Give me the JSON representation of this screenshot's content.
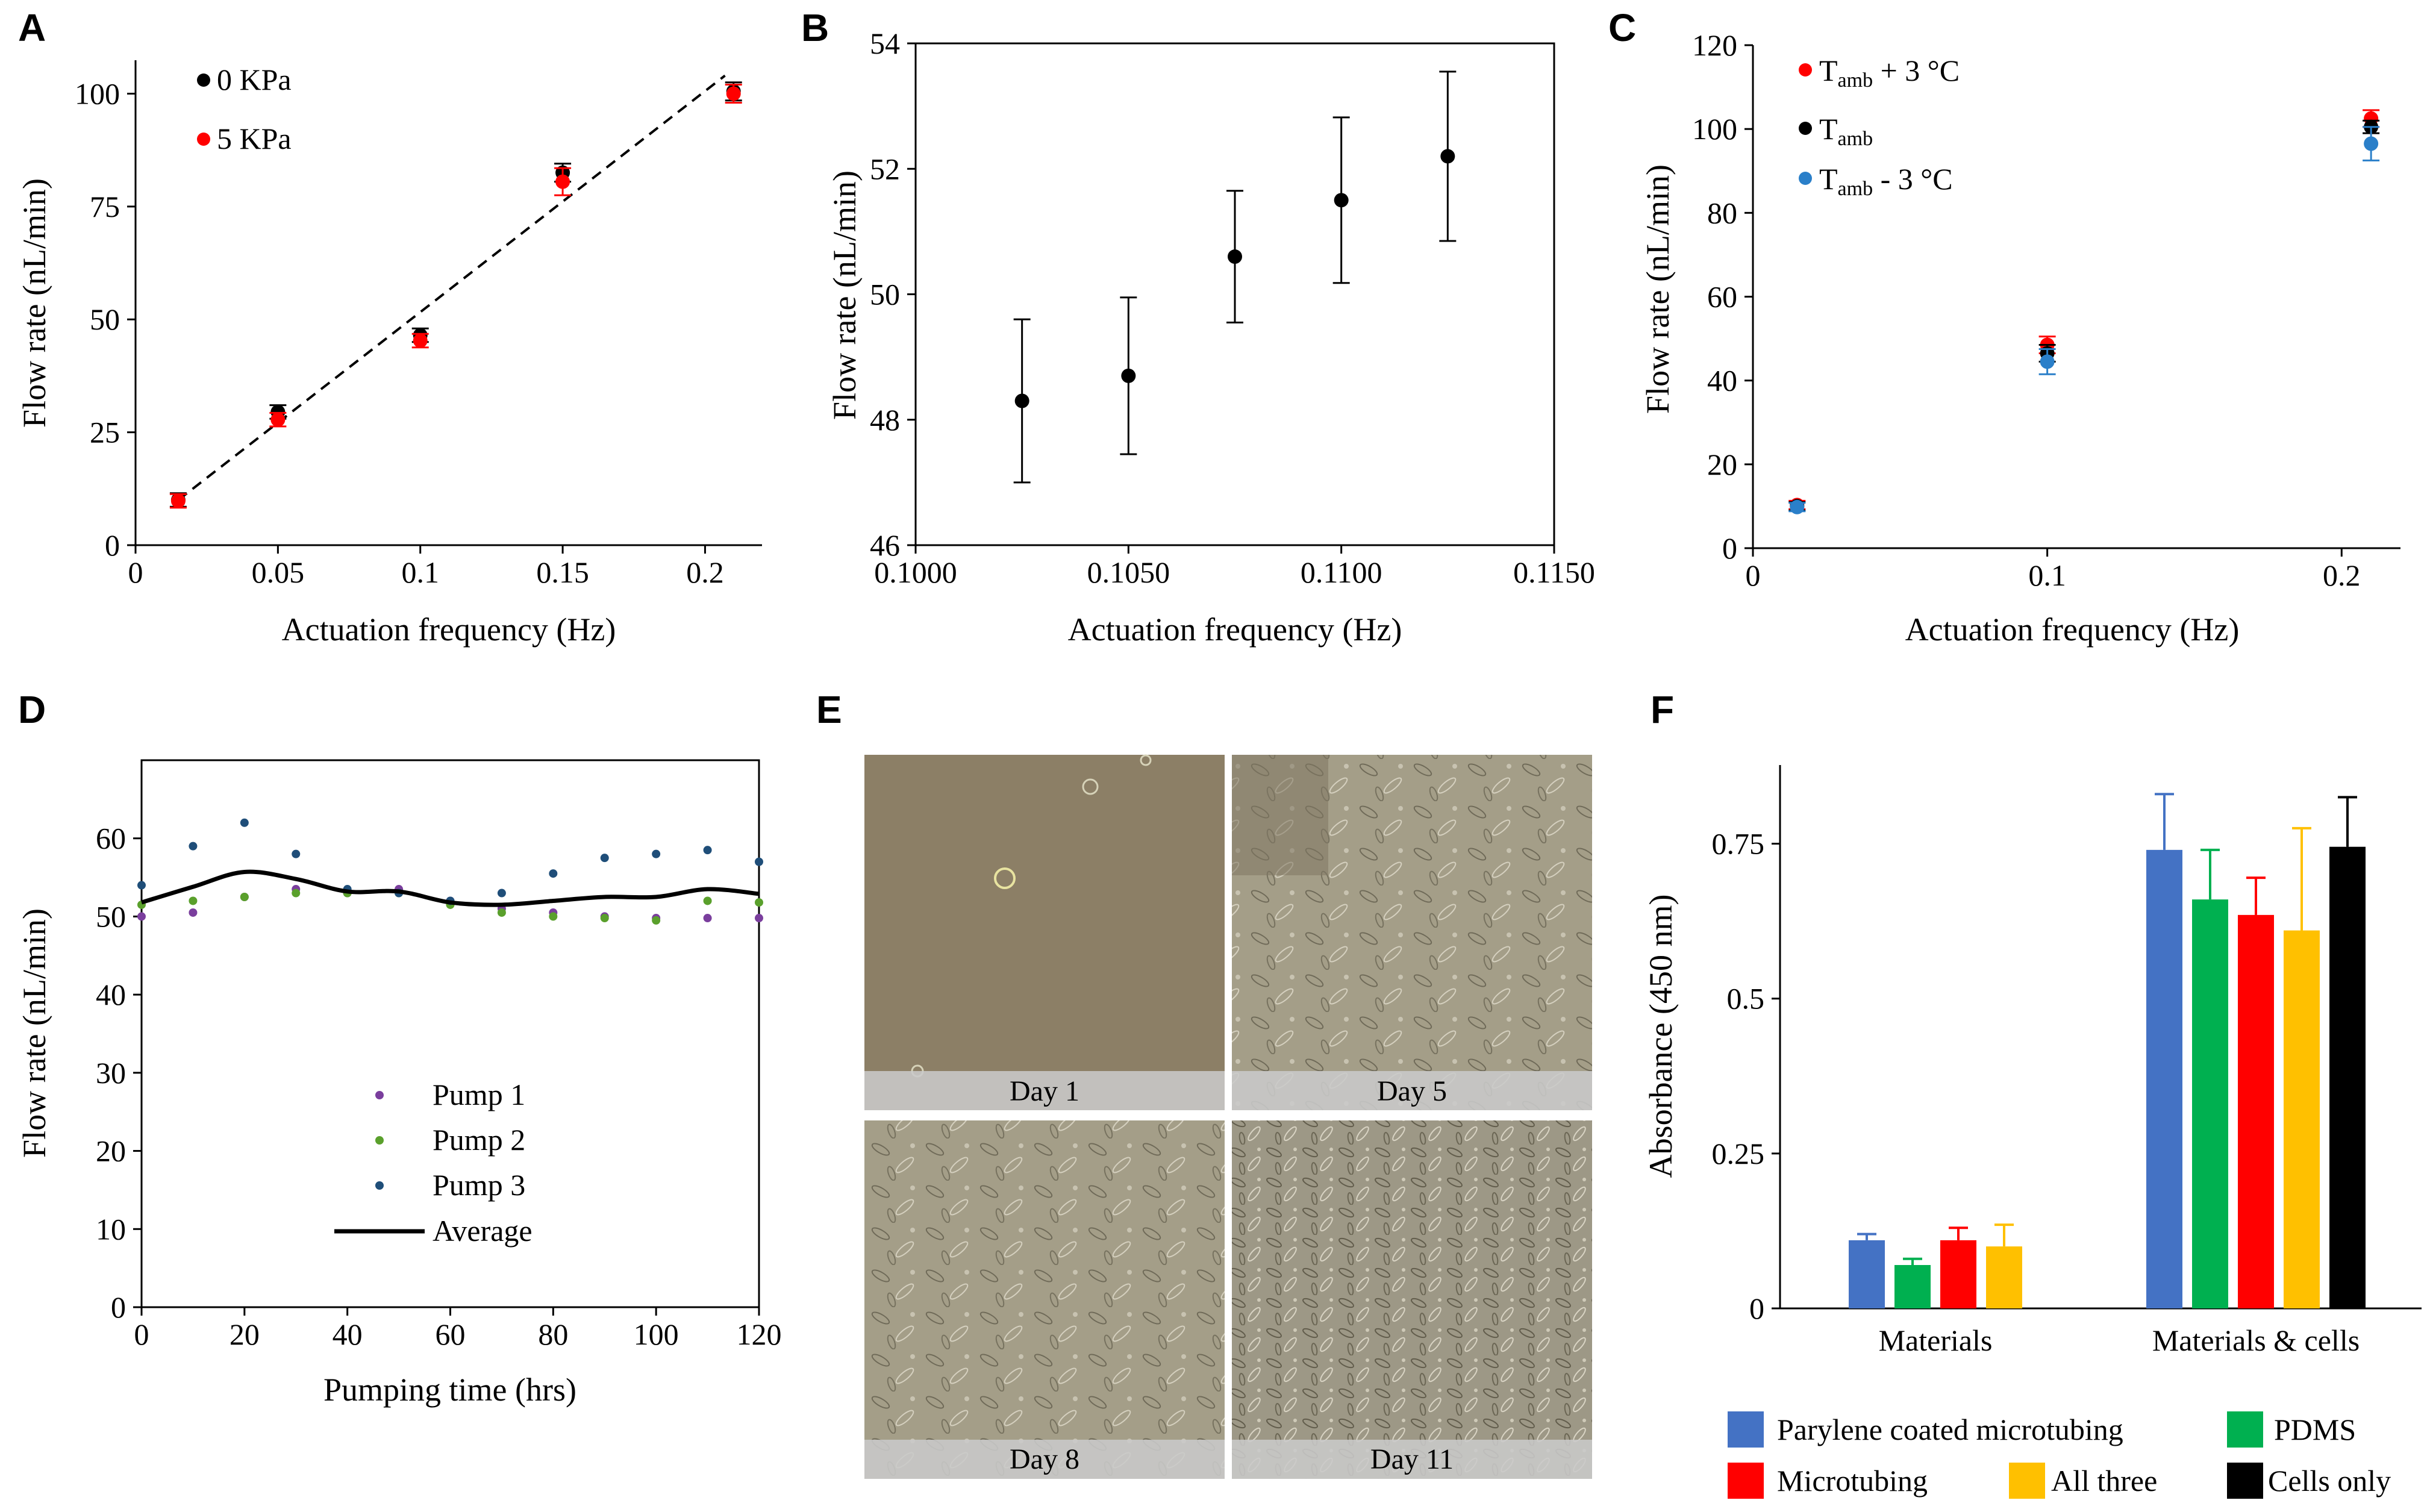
{
  "panels": {
    "A": {
      "label": "A",
      "chart_data": {
        "type": "scatter",
        "xlabel": "Actuation frequency (Hz)",
        "ylabel": "Flow rate (nL/min)",
        "xlim": [
          0,
          0.22
        ],
        "ylim": [
          0,
          105
        ],
        "xticks": [
          0,
          0.05,
          0.1,
          0.15,
          0.2
        ],
        "xtick_labels": [
          "0",
          "0.05",
          "0.1",
          "0.15",
          "0.2"
        ],
        "yticks": [
          0,
          25,
          50,
          75,
          100
        ],
        "ytick_labels": [
          "0",
          "25",
          "50",
          "75",
          "100"
        ],
        "series": [
          {
            "name": "0 KPa",
            "color": "#000000",
            "x": [
              0.015,
              0.05,
              0.1,
              0.15,
              0.21
            ],
            "y": [
              10,
              29.5,
              46.5,
              82.5,
              100.5
            ],
            "err": [
              1.5,
              1.5,
              1.5,
              2,
              2
            ]
          },
          {
            "name": "5 KPa",
            "color": "#ff0000",
            "x": [
              0.015,
              0.05,
              0.1,
              0.15,
              0.21
            ],
            "y": [
              9.8,
              27.8,
              45.3,
              80.5,
              100
            ],
            "err": [
              1.5,
              1.5,
              1.5,
              3,
              2
            ]
          }
        ],
        "fit_line": {
          "x": [
            0.015,
            0.207
          ],
          "y": [
            10,
            104
          ],
          "style": "dashed"
        },
        "legend_position": "top-left"
      }
    },
    "B": {
      "label": "B",
      "chart_data": {
        "type": "scatter",
        "xlabel": "Actuation frequency (Hz)",
        "ylabel": "Flow rate (nL/min)",
        "xlim": [
          0.1,
          0.115
        ],
        "ylim": [
          46,
          54
        ],
        "xticks": [
          0.1,
          0.105,
          0.11,
          0.115
        ],
        "xtick_labels": [
          "0.1000",
          "0.1050",
          "0.1100",
          "0.1150"
        ],
        "yticks": [
          46,
          48,
          50,
          52,
          54
        ],
        "ytick_labels": [
          "46",
          "48",
          "50",
          "52",
          "54"
        ],
        "series": [
          {
            "name": "",
            "color": "#000000",
            "x": [
              0.1025,
              0.105,
              0.1075,
              0.11,
              0.1125
            ],
            "y": [
              48.3,
              48.7,
              50.6,
              51.5,
              52.2
            ],
            "err": [
              1.3,
              1.25,
              1.05,
              1.32,
              1.35
            ]
          }
        ]
      }
    },
    "C": {
      "label": "C",
      "chart_data": {
        "type": "scatter",
        "xlabel": "Actuation frequency (Hz)",
        "ylabel": "Flow rate (nL/min)",
        "xlim": [
          0,
          0.22
        ],
        "ylim": [
          0,
          120
        ],
        "xticks": [
          0,
          0.1,
          0.2
        ],
        "xtick_labels": [
          "0",
          "0.1",
          "0.2"
        ],
        "yticks": [
          0,
          20,
          40,
          60,
          80,
          100,
          120
        ],
        "ytick_labels": [
          "0",
          "20",
          "40",
          "60",
          "80",
          "100",
          "120"
        ],
        "series": [
          {
            "name_main": "T",
            "name_sub": "amb",
            "name_suffix": " + 3 °C",
            "color": "#ff0000",
            "x": [
              0.015,
              0.1,
              0.21
            ],
            "y": [
              10.3,
              48.5,
              102.5
            ],
            "err": [
              1,
              2,
              2
            ]
          },
          {
            "name_main": "T",
            "name_sub": "amb",
            "name_suffix": "",
            "color": "#000000",
            "x": [
              0.015,
              0.1,
              0.21
            ],
            "y": [
              10,
              46.5,
              100.5
            ],
            "err": [
              1,
              2,
              1.5
            ]
          },
          {
            "name_main": "T",
            "name_sub": "amb",
            "name_suffix": " - 3 °C",
            "color": "#2a7fc9",
            "x": [
              0.015,
              0.1,
              0.21
            ],
            "y": [
              9.8,
              44.5,
              96.5
            ],
            "err": [
              1,
              3,
              4
            ]
          }
        ],
        "legend_position": "top-left"
      }
    },
    "D": {
      "label": "D",
      "chart_data": {
        "type": "scatter",
        "xlabel": "Pumping time (hrs)",
        "ylabel": "Flow rate (nL/min)",
        "xlim": [
          0,
          120
        ],
        "ylim": [
          0,
          70
        ],
        "xticks": [
          0,
          20,
          40,
          60,
          80,
          100,
          120
        ],
        "xtick_labels": [
          "0",
          "20",
          "40",
          "60",
          "80",
          "100",
          "120"
        ],
        "yticks": [
          0,
          10,
          20,
          30,
          40,
          50,
          60
        ],
        "ytick_labels": [
          "0",
          "10",
          "20",
          "30",
          "40",
          "50",
          "60"
        ],
        "x": [
          0,
          10,
          20,
          30,
          40,
          50,
          60,
          70,
          80,
          90,
          100,
          110,
          120
        ],
        "series": [
          {
            "name": "Pump 1",
            "color": "#7a3e9d",
            "y": [
              50,
              50.5,
              52.5,
              53.5,
              53,
              53.5,
              52,
              51,
              50.5,
              50,
              49.8,
              49.8,
              49.8
            ]
          },
          {
            "name": "Pump 2",
            "color": "#5aa02c",
            "y": [
              51.5,
              52,
              52.5,
              53,
              53,
              53,
              51.5,
              50.5,
              50,
              49.8,
              49.5,
              52,
              51.8
            ]
          },
          {
            "name": "Pump 3",
            "color": "#1f4e79",
            "y": [
              54,
              59,
              62,
              58,
              53.5,
              53,
              52,
              53,
              55.5,
              57.5,
              58,
              58.5,
              57
            ]
          },
          {
            "name": "Average",
            "color": "#000000",
            "line": true,
            "y": [
              51.8,
              53.8,
              55.7,
              54.8,
              53.2,
              53.2,
              51.8,
              51.5,
              52,
              52.5,
              52.5,
              53.5,
              52.9
            ]
          }
        ],
        "legend_position": "bottom-center"
      }
    },
    "E": {
      "label": "E",
      "photos": [
        {
          "label": "Day 1"
        },
        {
          "label": "Day 5"
        },
        {
          "label": "Day 8"
        },
        {
          "label": "Day 11"
        }
      ]
    },
    "F": {
      "label": "F",
      "chart_data": {
        "type": "bar",
        "ylabel": "Absorbance (450 nm)",
        "ylim": [
          0,
          0.875
        ],
        "yticks": [
          0,
          0.25,
          0.5,
          0.75
        ],
        "ytick_labels": [
          "0",
          "0.25",
          "0.5",
          "0.75"
        ],
        "categories": [
          "Materials",
          "Materials & cells"
        ],
        "series": [
          {
            "name": "Parylene coated microtubing",
            "color": "#4472c4",
            "values": [
              0.11,
              0.74
            ],
            "err": [
              0.01,
              0.09
            ]
          },
          {
            "name": "PDMS",
            "color": "#00b050",
            "values": [
              0.07,
              0.66
            ],
            "err": [
              0.01,
              0.08
            ]
          },
          {
            "name": "Microtubing",
            "color": "#ff0000",
            "values": [
              0.11,
              0.635
            ],
            "err": [
              0.02,
              0.06
            ]
          },
          {
            "name": "All three",
            "color": "#ffc000",
            "values": [
              0.1,
              0.61
            ],
            "err": [
              0.035,
              0.165
            ]
          },
          {
            "name": "Cells only",
            "color": "#000000",
            "values": [
              null,
              0.745
            ],
            "err": [
              null,
              0.08
            ]
          }
        ],
        "legend_position": "bottom"
      }
    }
  }
}
